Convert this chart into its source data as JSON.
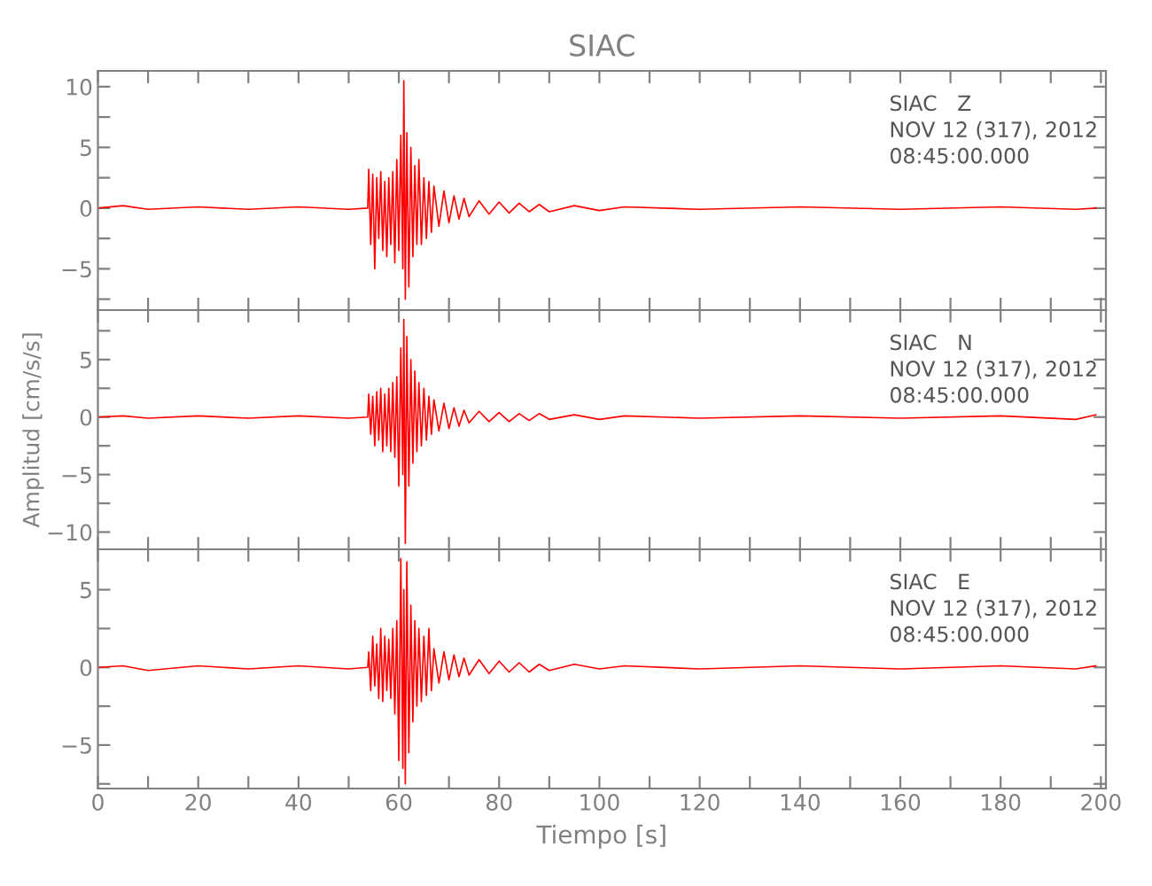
{
  "chart_data": [
    {
      "type": "line",
      "title": "SIAC",
      "tick_labels": "y",
      "annotations": [
        "SIAC   Z",
        "NOV 12 (317), 2012",
        "08:45:00.000"
      ],
      "xlim": [
        0,
        201
      ],
      "ylim": [
        -8.4,
        11.3
      ],
      "xticks": [
        0,
        {
          "value": 10,
          "label": null
        },
        20,
        {
          "value": 30,
          "label": null
        },
        40,
        {
          "value": 50,
          "label": null
        },
        60,
        {
          "value": 70,
          "label": null
        },
        80,
        {
          "value": 90,
          "label": null
        },
        100,
        {
          "value": 110,
          "label": null
        },
        120,
        {
          "value": 130,
          "label": null
        },
        140,
        {
          "value": 150,
          "label": null
        },
        160,
        {
          "value": 170,
          "label": null
        },
        180,
        {
          "value": 190,
          "label": null
        },
        200
      ],
      "yticks": [
        {
          "value": -7.5,
          "label": null
        },
        {
          "value": -5,
          "label": "−5"
        },
        {
          "value": -2.5,
          "label": null
        },
        0,
        {
          "value": 2.5,
          "label": null
        },
        5,
        {
          "value": 7.5,
          "label": null
        },
        10
      ],
      "series": [
        {
          "color": "#ff0000",
          "x": [
            0,
            5,
            10,
            20,
            30,
            40,
            50,
            53.8,
            54,
            54.4,
            54.8,
            55.2,
            55.6,
            56,
            56.4,
            56.8,
            57.2,
            57.6,
            58,
            58.4,
            58.8,
            59.2,
            59.6,
            60,
            60.4,
            60.8,
            61,
            61.3,
            61.6,
            62,
            62.4,
            62.8,
            63.2,
            63.6,
            64,
            64.5,
            65,
            65.5,
            66,
            66.5,
            67,
            68,
            69,
            70,
            71,
            72,
            73,
            74,
            76,
            78,
            80,
            82,
            84,
            86,
            88,
            90,
            95,
            100,
            105,
            120,
            140,
            160,
            180,
            195,
            199
          ],
          "values": [
            0,
            0.2,
            -0.1,
            0.1,
            -0.1,
            0.1,
            -0.1,
            0,
            3.2,
            -3,
            2.8,
            -5,
            2.5,
            -2.5,
            3,
            -3.5,
            2.2,
            -4,
            2.5,
            -3,
            3,
            -4.5,
            4,
            -3.5,
            6,
            -5,
            10.5,
            -7.5,
            6.2,
            -6.5,
            5,
            -4,
            3.5,
            -3,
            4,
            -3,
            2.5,
            -2.5,
            2.2,
            -2,
            1.8,
            -1.5,
            1.4,
            -1.2,
            1,
            -0.9,
            0.8,
            -0.7,
            0.6,
            -0.5,
            0.5,
            -0.4,
            0.4,
            -0.3,
            0.3,
            -0.3,
            0.2,
            -0.2,
            0.1,
            -0.1,
            0.1,
            -0.1,
            0.1,
            -0.1,
            0
          ]
        }
      ]
    },
    {
      "type": "line",
      "ylabel": "Amplitud [cm/s/s]",
      "tick_labels": "y",
      "annotations": [
        "SIAC   N",
        "NOV 12 (317), 2012",
        "08:45:00.000"
      ],
      "xlim": [
        0,
        201
      ],
      "ylim": [
        -11.5,
        9.3
      ],
      "xticks": [
        0,
        {
          "value": 10,
          "label": null
        },
        20,
        {
          "value": 30,
          "label": null
        },
        40,
        {
          "value": 50,
          "label": null
        },
        60,
        {
          "value": 70,
          "label": null
        },
        80,
        {
          "value": 90,
          "label": null
        },
        100,
        {
          "value": 110,
          "label": null
        },
        120,
        {
          "value": 130,
          "label": null
        },
        140,
        {
          "value": 150,
          "label": null
        },
        160,
        {
          "value": 170,
          "label": null
        },
        180,
        {
          "value": 190,
          "label": null
        },
        200
      ],
      "yticks": [
        {
          "value": -10,
          "label": "−10"
        },
        {
          "value": -7.5,
          "label": null
        },
        {
          "value": -5,
          "label": "−5"
        },
        {
          "value": -2.5,
          "label": null
        },
        0,
        {
          "value": 2.5,
          "label": null
        },
        5,
        {
          "value": 7.5,
          "label": null
        }
      ],
      "series": [
        {
          "color": "#ff0000",
          "x": [
            0,
            5,
            10,
            20,
            30,
            40,
            50,
            53.8,
            54,
            54.4,
            54.8,
            55.2,
            55.6,
            56,
            56.4,
            56.8,
            57.2,
            57.6,
            58,
            58.4,
            58.8,
            59.2,
            59.6,
            60,
            60.4,
            60.8,
            61,
            61.3,
            61.6,
            62,
            62.4,
            62.8,
            63.2,
            63.6,
            64,
            64.5,
            65,
            65.5,
            66,
            66.5,
            67,
            68,
            69,
            70,
            71,
            72,
            73,
            74,
            76,
            78,
            80,
            82,
            84,
            86,
            88,
            90,
            95,
            100,
            105,
            120,
            140,
            160,
            180,
            195,
            199
          ],
          "values": [
            0,
            0.1,
            -0.1,
            0.1,
            -0.1,
            0.1,
            -0.1,
            0,
            2,
            -1.5,
            1.8,
            -2.5,
            2.2,
            -2,
            2.5,
            -3,
            2,
            -2.5,
            2.5,
            -3,
            3,
            -3.5,
            3.5,
            -6,
            6,
            -5,
            8.5,
            -11,
            7,
            -6,
            5,
            -4,
            4,
            -3,
            3,
            -2.5,
            2.5,
            -2,
            1.8,
            -1.5,
            1.5,
            -1.2,
            1.2,
            -1,
            0.8,
            -0.8,
            0.6,
            -0.5,
            0.5,
            -0.4,
            0.4,
            -0.4,
            0.3,
            -0.3,
            0.3,
            -0.2,
            0.2,
            -0.2,
            0.1,
            -0.1,
            0.1,
            -0.1,
            0.1,
            -0.2,
            0.2
          ]
        }
      ]
    },
    {
      "type": "line",
      "xlabel": "Tiempo [s]",
      "annotations": [
        "SIAC   E",
        "NOV 12 (317), 2012",
        "08:45:00.000"
      ],
      "xlim": [
        0,
        201
      ],
      "ylim": [
        -7.8,
        7.6
      ],
      "xticks": [
        0,
        {
          "value": 10,
          "label": null
        },
        20,
        {
          "value": 30,
          "label": null
        },
        40,
        {
          "value": 50,
          "label": null
        },
        60,
        {
          "value": 70,
          "label": null
        },
        80,
        {
          "value": 90,
          "label": null
        },
        100,
        {
          "value": 110,
          "label": null
        },
        120,
        {
          "value": 130,
          "label": null
        },
        140,
        {
          "value": 150,
          "label": null
        },
        160,
        {
          "value": 170,
          "label": null
        },
        180,
        {
          "value": 190,
          "label": null
        },
        200
      ],
      "yticks": [
        {
          "value": -7.5,
          "label": null
        },
        {
          "value": -5,
          "label": "−5"
        },
        {
          "value": -2.5,
          "label": null
        },
        0,
        {
          "value": 2.5,
          "label": null
        },
        5
      ],
      "series": [
        {
          "color": "#ff0000",
          "x": [
            0,
            5,
            10,
            20,
            30,
            40,
            50,
            53.8,
            54,
            54.4,
            54.8,
            55.2,
            55.6,
            56,
            56.4,
            56.8,
            57.2,
            57.6,
            58,
            58.4,
            58.8,
            59.2,
            59.6,
            60,
            60.4,
            60.8,
            61,
            61.3,
            61.6,
            62,
            62.4,
            62.8,
            63.2,
            63.6,
            64,
            64.5,
            65,
            65.5,
            66,
            66.5,
            67,
            68,
            69,
            70,
            71,
            72,
            73,
            74,
            76,
            78,
            80,
            82,
            84,
            86,
            88,
            90,
            95,
            100,
            105,
            120,
            140,
            160,
            180,
            195,
            199
          ],
          "values": [
            0,
            0.1,
            -0.2,
            0.1,
            -0.1,
            0.1,
            -0.1,
            0,
            1,
            -1.5,
            2,
            -1.2,
            1.5,
            -2,
            2.5,
            -2.2,
            2,
            -1.5,
            1.8,
            -2,
            2.5,
            -3,
            3,
            -6,
            7,
            -6.5,
            5,
            -7.5,
            6.8,
            -5.5,
            4,
            -3.5,
            3,
            -2.5,
            2.5,
            -2.2,
            2,
            -1.8,
            2.5,
            -1.5,
            1.2,
            -1,
            1,
            -0.8,
            0.8,
            -0.6,
            0.6,
            -0.5,
            0.5,
            -0.4,
            0.4,
            -0.3,
            0.3,
            -0.3,
            0.2,
            -0.2,
            0.2,
            -0.1,
            0.1,
            -0.1,
            0.1,
            -0.1,
            0.1,
            -0.1,
            0.1
          ]
        }
      ]
    }
  ]
}
